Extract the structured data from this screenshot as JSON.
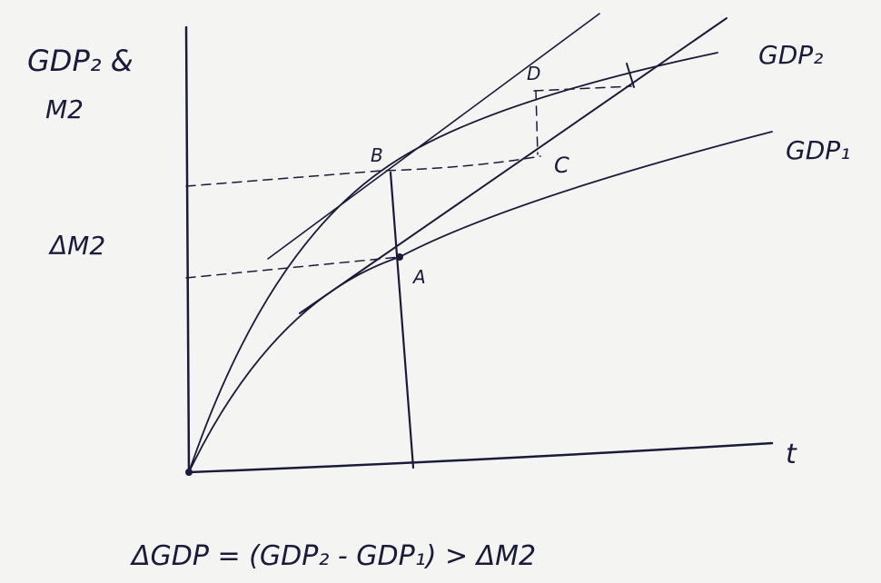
{
  "axis_labels": {
    "y_top": "GDP₂ &",
    "y_bottom": "M2",
    "y_mid": "ΔM2",
    "x": "t"
  },
  "points": {
    "a": "A",
    "b": "B",
    "c": "C",
    "d": "D"
  },
  "curves": {
    "gdp2": "GDP₂",
    "gdp1": "GDP₁"
  },
  "equation": "ΔGDP = (GDP₂ - GDP₁) > ΔM2"
}
